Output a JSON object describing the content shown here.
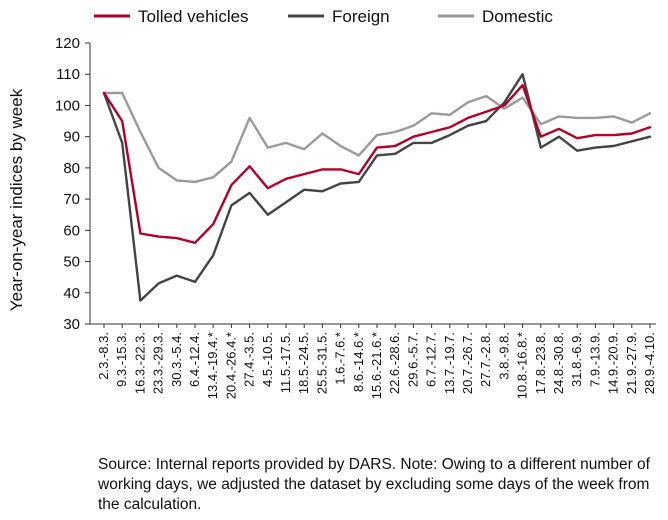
{
  "chart_data": {
    "type": "line",
    "ylabel": "Year-on-year indices by week",
    "xlabel": "",
    "ylim": [
      30,
      120
    ],
    "yticks": [
      30,
      40,
      50,
      60,
      70,
      80,
      90,
      100,
      110,
      120
    ],
    "grid": false,
    "legend_position": "top",
    "categories": [
      "2.3.-8.3.",
      "9.3.-15.3.",
      "16.3.-22.3.",
      "23.3.-29.3.",
      "30.3.-5.4.",
      "6.4.-12.4.",
      "13.4.-19.4.*",
      "20.4.-26.4.*",
      "27.4.-3.5.",
      "4.5.-10.5.",
      "11.5.-17.5.",
      "18.5.-24.5.",
      "25.5.-31.5.",
      "1.6.-7.6.*",
      "8.6.-14.6.*",
      "15.6.-21.6.*",
      "22.6.-28.6.",
      "29.6.-5.7.",
      "6.7.-12.7.",
      "13.7.-19.7.",
      "20.7.-26.7.",
      "27.7.-2.8.",
      "3.8.-9.8.",
      "10.8.-16.8.*",
      "17.8.-23.8.",
      "24.8.-30.8.",
      "31.8.-6.9.",
      "7.9.-13.9.",
      "14.9.-20.9.",
      "21.9.-27.9.",
      "28.9.-4.10."
    ],
    "series": [
      {
        "name": "Tolled vehicles",
        "color": "#b0002a",
        "values": [
          104,
          95,
          59,
          58,
          57.5,
          56,
          62,
          74.5,
          80.5,
          73.5,
          76.5,
          78,
          79.5,
          79.5,
          78,
          86.5,
          87,
          90,
          91.5,
          93,
          96,
          98,
          100,
          106.5,
          90,
          92.5,
          89.5,
          90.5,
          90.5,
          91,
          93
        ]
      },
      {
        "name": "Foreign",
        "color": "#444444",
        "values": [
          104,
          88,
          37.5,
          43,
          45.5,
          43.5,
          52,
          68,
          72,
          65,
          69,
          73,
          72.5,
          75,
          75.5,
          84,
          84.5,
          88,
          88,
          90.5,
          93.5,
          95,
          101,
          110,
          86.5,
          90,
          85.5,
          86.5,
          87,
          88.5,
          90
        ]
      },
      {
        "name": "Domestic",
        "color": "#9a9a9a",
        "values": [
          104,
          104,
          91.5,
          80,
          76,
          75.5,
          77,
          82,
          96,
          86.5,
          88,
          86,
          91,
          87,
          84,
          90.5,
          91.5,
          93.5,
          97.5,
          97,
          101,
          103,
          99,
          102.5,
          94,
          96.5,
          96,
          96,
          96.5,
          94.5,
          97.5
        ]
      }
    ]
  },
  "source_text": "Source: Internal reports provided by DARS. Note: Owing to a different number of working days, we adjusted the dataset by excluding some days of the week from the calculation."
}
